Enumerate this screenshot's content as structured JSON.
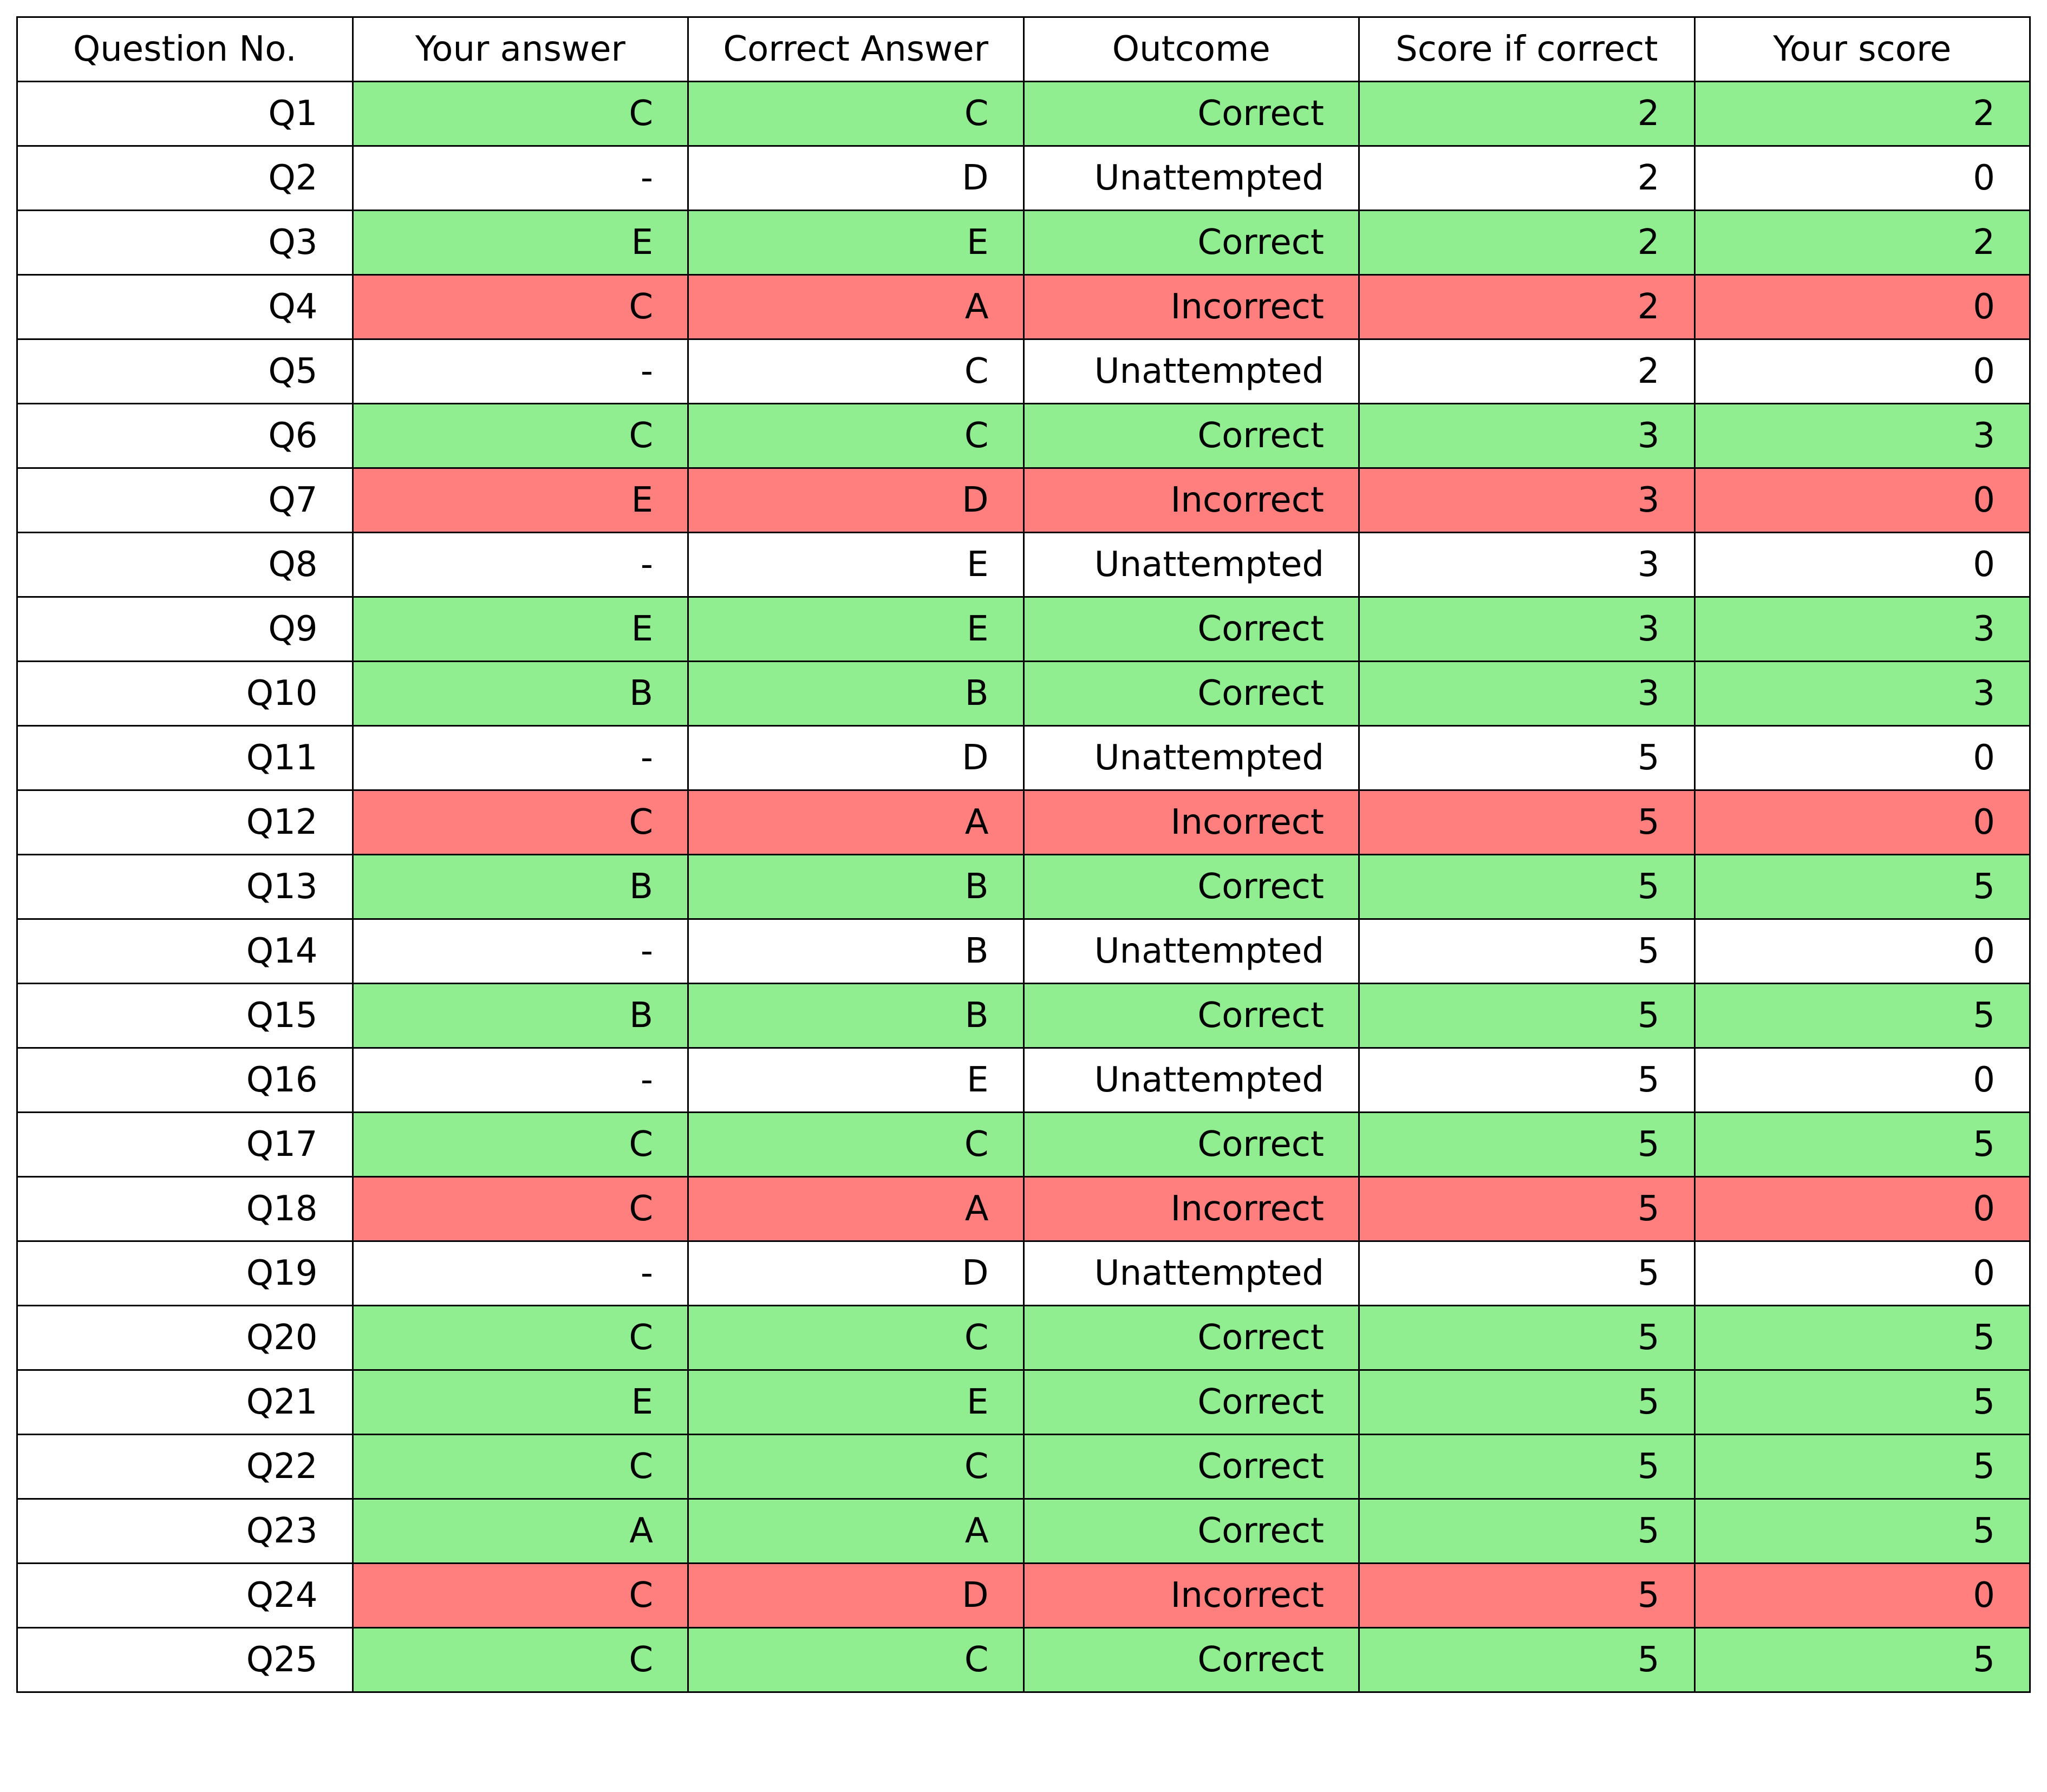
{
  "chart_data": {
    "type": "table",
    "columns": [
      "Question No.",
      "Your answer",
      "Correct Answer",
      "Outcome",
      "Score if correct",
      "Your score"
    ],
    "rows": [
      [
        "Q1",
        "C",
        "C",
        "Correct",
        "2",
        "2"
      ],
      [
        "Q2",
        "-",
        "D",
        "Unattempted",
        "2",
        "0"
      ],
      [
        "Q3",
        "E",
        "E",
        "Correct",
        "2",
        "2"
      ],
      [
        "Q4",
        "C",
        "A",
        "Incorrect",
        "2",
        "0"
      ],
      [
        "Q5",
        "-",
        "C",
        "Unattempted",
        "2",
        "0"
      ],
      [
        "Q6",
        "C",
        "C",
        "Correct",
        "3",
        "3"
      ],
      [
        "Q7",
        "E",
        "D",
        "Incorrect",
        "3",
        "0"
      ],
      [
        "Q8",
        "-",
        "E",
        "Unattempted",
        "3",
        "0"
      ],
      [
        "Q9",
        "E",
        "E",
        "Correct",
        "3",
        "3"
      ],
      [
        "Q10",
        "B",
        "B",
        "Correct",
        "3",
        "3"
      ],
      [
        "Q11",
        "-",
        "D",
        "Unattempted",
        "5",
        "0"
      ],
      [
        "Q12",
        "C",
        "A",
        "Incorrect",
        "5",
        "0"
      ],
      [
        "Q13",
        "B",
        "B",
        "Correct",
        "5",
        "5"
      ],
      [
        "Q14",
        "-",
        "B",
        "Unattempted",
        "5",
        "0"
      ],
      [
        "Q15",
        "B",
        "B",
        "Correct",
        "5",
        "5"
      ],
      [
        "Q16",
        "-",
        "E",
        "Unattempted",
        "5",
        "0"
      ],
      [
        "Q17",
        "C",
        "C",
        "Correct",
        "5",
        "5"
      ],
      [
        "Q18",
        "C",
        "A",
        "Incorrect",
        "5",
        "0"
      ],
      [
        "Q19",
        "-",
        "D",
        "Unattempted",
        "5",
        "0"
      ],
      [
        "Q20",
        "C",
        "C",
        "Correct",
        "5",
        "5"
      ],
      [
        "Q21",
        "E",
        "E",
        "Correct",
        "5",
        "5"
      ],
      [
        "Q22",
        "C",
        "C",
        "Correct",
        "5",
        "5"
      ],
      [
        "Q23",
        "A",
        "A",
        "Correct",
        "5",
        "5"
      ],
      [
        "Q24",
        "C",
        "D",
        "Incorrect",
        "5",
        "0"
      ],
      [
        "Q25",
        "C",
        "C",
        "Correct",
        "5",
        "5"
      ]
    ],
    "row_colors": {
      "Correct": "#90ee90",
      "Incorrect": "#ff7f7f",
      "Unattempted": "#ffffff"
    },
    "question_column_color": "#ffffff",
    "border_color": "#000000"
  }
}
